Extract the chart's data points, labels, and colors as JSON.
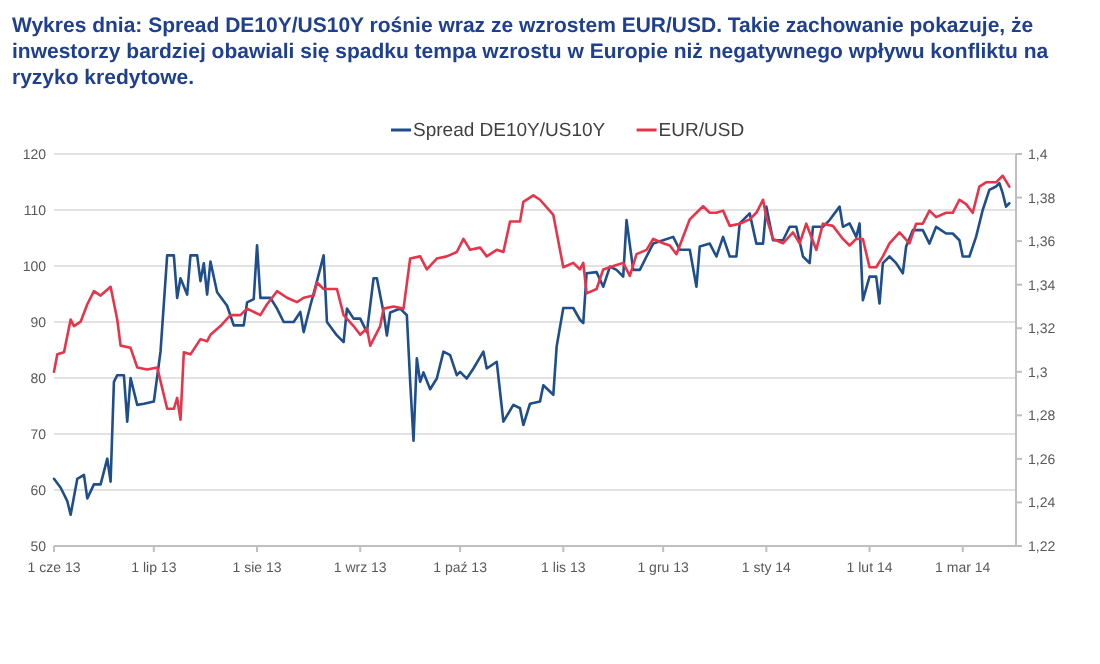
{
  "chart_data": {
    "type": "line",
    "title": "Wykres dnia:  Spread DE10Y/US10Y rośnie wraz ze wzrostem EUR/USD. Takie zachowanie pokazuje, że inwestorzy bardziej obawiali się spadku tempa wzrostu w Europie niż negatywnego wpływu konfliktu na ryzyko kredytowe.",
    "xlim": [
      "2013-06-01",
      "2014-03-17"
    ],
    "xticks": [
      {
        "value": "2013-06-01",
        "label": "1 cze 13"
      },
      {
        "value": "2013-07-01",
        "label": "1 lip 13"
      },
      {
        "value": "2013-08-01",
        "label": "1 sie 13"
      },
      {
        "value": "2013-09-01",
        "label": "1 wrz 13"
      },
      {
        "value": "2013-10-01",
        "label": "1 paź 13"
      },
      {
        "value": "2013-11-01",
        "label": "1 lis 13"
      },
      {
        "value": "2013-12-01",
        "label": "1 gru 13"
      },
      {
        "value": "2014-01-01",
        "label": "1 sty 14"
      },
      {
        "value": "2014-02-01",
        "label": "1 lut 14"
      },
      {
        "value": "2014-03-01",
        "label": "1 mar 14"
      }
    ],
    "ylim": [
      50,
      120
    ],
    "yticks": [
      50,
      60,
      70,
      80,
      90,
      100,
      110,
      120
    ],
    "y2lim": [
      1.22,
      1.4
    ],
    "y2ticks": [
      {
        "value": 1.22,
        "label": "1,22"
      },
      {
        "value": 1.24,
        "label": "1,24"
      },
      {
        "value": 1.26,
        "label": "1,26"
      },
      {
        "value": 1.28,
        "label": "1,28"
      },
      {
        "value": 1.3,
        "label": "1,3"
      },
      {
        "value": 1.32,
        "label": "1,32"
      },
      {
        "value": 1.34,
        "label": "1,34"
      },
      {
        "value": 1.36,
        "label": "1,36"
      },
      {
        "value": 1.38,
        "label": "1,38"
      },
      {
        "value": 1.4,
        "label": "1,4"
      }
    ],
    "grid": "y",
    "legend": "top",
    "series": [
      {
        "name": "Spread DE10Y/US10Y",
        "color": "#1f4e8c",
        "x": [
          "2013-06-01",
          "2013-06-03",
          "2013-06-05",
          "2013-06-06",
          "2013-06-08",
          "2013-06-10",
          "2013-06-11",
          "2013-06-13",
          "2013-06-15",
          "2013-06-17",
          "2013-06-18",
          "2013-06-19",
          "2013-06-20",
          "2013-06-22",
          "2013-06-23",
          "2013-06-24",
          "2013-06-26",
          "2013-06-28",
          "2013-07-01",
          "2013-07-03",
          "2013-07-05",
          "2013-07-07",
          "2013-07-08",
          "2013-07-09",
          "2013-07-11",
          "2013-07-12",
          "2013-07-14",
          "2013-07-15",
          "2013-07-16",
          "2013-07-17",
          "2013-07-18",
          "2013-07-20",
          "2013-07-23",
          "2013-07-25",
          "2013-07-28",
          "2013-07-29",
          "2013-07-31",
          "2013-08-01",
          "2013-08-02",
          "2013-08-05",
          "2013-08-07",
          "2013-08-09",
          "2013-08-12",
          "2013-08-14",
          "2013-08-15",
          "2013-08-17",
          "2013-08-19",
          "2013-08-21",
          "2013-08-22",
          "2013-08-25",
          "2013-08-27",
          "2013-08-28",
          "2013-08-30",
          "2013-09-01",
          "2013-09-03",
          "2013-09-05",
          "2013-09-06",
          "2013-09-08",
          "2013-09-09",
          "2013-09-10",
          "2013-09-13",
          "2013-09-15",
          "2013-09-16",
          "2013-09-17",
          "2013-09-18",
          "2013-09-19",
          "2013-09-20",
          "2013-09-22",
          "2013-09-24",
          "2013-09-26",
          "2013-09-28",
          "2013-09-30",
          "2013-10-01",
          "2013-10-03",
          "2013-10-05",
          "2013-10-08",
          "2013-10-09",
          "2013-10-12",
          "2013-10-14",
          "2013-10-17",
          "2013-10-19",
          "2013-10-20",
          "2013-10-22",
          "2013-10-25",
          "2013-10-26",
          "2013-10-29",
          "2013-10-30",
          "2013-11-01",
          "2013-11-04",
          "2013-11-06",
          "2013-11-07",
          "2013-11-08",
          "2013-11-11",
          "2013-11-13",
          "2013-11-15",
          "2013-11-17",
          "2013-11-19",
          "2013-11-20",
          "2013-11-22",
          "2013-11-24",
          "2013-11-26",
          "2013-11-28",
          "2013-12-01",
          "2013-12-04",
          "2013-12-06",
          "2013-12-09",
          "2013-12-11",
          "2013-12-12",
          "2013-12-15",
          "2013-12-17",
          "2013-12-19",
          "2013-12-21",
          "2013-12-23",
          "2013-12-24",
          "2013-12-27",
          "2013-12-29",
          "2013-12-31",
          "2014-01-01",
          "2014-01-03",
          "2014-01-06",
          "2014-01-08",
          "2014-01-10",
          "2014-01-12",
          "2014-01-14",
          "2014-01-15",
          "2014-01-18",
          "2014-01-20",
          "2014-01-23",
          "2014-01-24",
          "2014-01-26",
          "2014-01-28",
          "2014-01-29",
          "2014-01-30",
          "2014-02-01",
          "2014-02-03",
          "2014-02-04",
          "2014-02-05",
          "2014-02-07",
          "2014-02-09",
          "2014-02-11",
          "2014-02-12",
          "2014-02-14",
          "2014-02-17",
          "2014-02-19",
          "2014-02-21",
          "2014-02-24",
          "2014-02-26",
          "2014-02-28",
          "2014-03-01",
          "2014-03-03",
          "2014-03-05",
          "2014-03-07",
          "2014-03-09",
          "2014-03-11",
          "2014-03-12",
          "2014-03-13",
          "2014-03-14",
          "2014-03-15"
        ],
        "values": [
          62,
          60.4,
          58,
          55.6,
          62,
          62.7,
          58.5,
          61,
          61,
          65.6,
          61.5,
          79.3,
          80.5,
          80.5,
          72.2,
          80,
          75.2,
          75.4,
          75.8,
          84.7,
          101.9,
          101.9,
          94.3,
          97.8,
          94.9,
          101.9,
          101.9,
          97.3,
          100.5,
          94.9,
          100.8,
          95.3,
          92.9,
          89.4,
          89.4,
          93.5,
          94.1,
          103.7,
          94.3,
          94.3,
          92.4,
          90,
          90,
          91.8,
          88.2,
          92.9,
          97.3,
          101.9,
          90,
          87.6,
          86.4,
          92.4,
          90.6,
          90.6,
          88.2,
          97.8,
          97.8,
          91.7,
          87.6,
          91.7,
          92.4,
          91.2,
          79.3,
          68.8,
          83.5,
          79.3,
          81,
          78,
          79.9,
          84.7,
          84.1,
          80.5,
          81.1,
          79.9,
          81.7,
          84.7,
          81.7,
          82.9,
          72.2,
          75.2,
          74.6,
          71.6,
          75.4,
          75.8,
          78.7,
          77,
          85.6,
          92.5,
          92.5,
          90.4,
          89.8,
          98.7,
          98.9,
          96.3,
          99.9,
          99.3,
          98.1,
          108.2,
          99.3,
          99.3,
          101.7,
          104,
          104.6,
          105.2,
          102.9,
          102.9,
          96.3,
          103.5,
          104,
          101.7,
          105.2,
          101.7,
          101.7,
          107.6,
          109.4,
          104,
          104,
          110.6,
          104.6,
          104.6,
          107,
          107,
          101.7,
          100.5,
          107,
          107,
          108.2,
          110.6,
          107,
          107.6,
          105.2,
          107.6,
          93.9,
          98.1,
          98.1,
          93.3,
          100.5,
          101.7,
          100.5,
          98.7,
          103.5,
          106.4,
          106.4,
          104,
          107,
          105.8,
          105.8,
          104.6,
          101.7,
          101.7,
          105.2,
          110,
          113.6,
          114.2,
          114.8,
          113,
          110.6,
          111.2
        ]
      },
      {
        "name": "EUR/USD",
        "color": "#e8344a",
        "axis": "y2",
        "x": [
          "2013-06-01",
          "2013-06-02",
          "2013-06-04",
          "2013-06-06",
          "2013-06-07",
          "2013-06-09",
          "2013-06-11",
          "2013-06-13",
          "2013-06-15",
          "2013-06-18",
          "2013-06-20",
          "2013-06-21",
          "2013-06-24",
          "2013-06-26",
          "2013-06-29",
          "2013-07-02",
          "2013-07-05",
          "2013-07-07",
          "2013-07-08",
          "2013-07-09",
          "2013-07-10",
          "2013-07-12",
          "2013-07-15",
          "2013-07-17",
          "2013-07-18",
          "2013-07-21",
          "2013-07-24",
          "2013-07-27",
          "2013-07-29",
          "2013-08-02",
          "2013-08-04",
          "2013-08-07",
          "2013-08-10",
          "2013-08-13",
          "2013-08-15",
          "2013-08-18",
          "2013-08-19",
          "2013-08-21",
          "2013-08-25",
          "2013-08-27",
          "2013-08-30",
          "2013-09-01",
          "2013-09-03",
          "2013-09-04",
          "2013-09-06",
          "2013-09-07",
          "2013-09-08",
          "2013-09-11",
          "2013-09-14",
          "2013-09-16",
          "2013-09-19",
          "2013-09-21",
          "2013-09-24",
          "2013-09-27",
          "2013-09-30",
          "2013-10-02",
          "2013-10-04",
          "2013-10-07",
          "2013-10-09",
          "2013-10-12",
          "2013-10-14",
          "2013-10-16",
          "2013-10-19",
          "2013-10-20",
          "2013-10-23",
          "2013-10-25",
          "2013-10-29",
          "2013-11-01",
          "2013-11-04",
          "2013-11-06",
          "2013-11-07",
          "2013-11-08",
          "2013-11-11",
          "2013-11-13",
          "2013-11-15",
          "2013-11-17",
          "2013-11-19",
          "2013-11-21",
          "2013-11-23",
          "2013-11-26",
          "2013-11-28",
          "2013-12-01",
          "2013-12-03",
          "2013-12-05",
          "2013-12-07",
          "2013-12-09",
          "2013-12-11",
          "2013-12-13",
          "2013-12-15",
          "2013-12-17",
          "2013-12-19",
          "2013-12-21",
          "2013-12-24",
          "2013-12-27",
          "2013-12-29",
          "2013-12-31",
          "2014-01-01",
          "2014-01-03",
          "2014-01-06",
          "2014-01-09",
          "2014-01-11",
          "2014-01-13",
          "2014-01-16",
          "2014-01-18",
          "2014-01-21",
          "2014-01-24",
          "2014-01-26",
          "2014-01-28",
          "2014-01-30",
          "2014-02-01",
          "2014-02-03",
          "2014-02-05",
          "2014-02-07",
          "2014-02-10",
          "2014-02-13",
          "2014-02-15",
          "2014-02-17",
          "2014-02-19",
          "2014-02-21",
          "2014-02-24",
          "2014-02-26",
          "2014-02-28",
          "2014-03-02",
          "2014-03-04",
          "2014-03-06",
          "2014-03-08",
          "2014-03-11",
          "2014-03-13",
          "2014-03-15"
        ],
        "values": [
          1.3,
          1.308,
          1.309,
          1.324,
          1.321,
          1.323,
          1.331,
          1.337,
          1.335,
          1.339,
          1.324,
          1.312,
          1.311,
          1.302,
          1.301,
          1.302,
          1.283,
          1.283,
          1.288,
          1.278,
          1.309,
          1.308,
          1.315,
          1.314,
          1.317,
          1.321,
          1.326,
          1.326,
          1.329,
          1.326,
          1.331,
          1.337,
          1.334,
          1.332,
          1.334,
          1.335,
          1.341,
          1.338,
          1.338,
          1.326,
          1.321,
          1.317,
          1.32,
          1.312,
          1.318,
          1.321,
          1.329,
          1.33,
          1.329,
          1.352,
          1.353,
          1.347,
          1.352,
          1.353,
          1.355,
          1.361,
          1.356,
          1.357,
          1.353,
          1.356,
          1.355,
          1.369,
          1.369,
          1.378,
          1.381,
          1.379,
          1.372,
          1.348,
          1.35,
          1.347,
          1.35,
          1.336,
          1.338,
          1.347,
          1.348,
          1.349,
          1.35,
          1.344,
          1.354,
          1.356,
          1.361,
          1.359,
          1.358,
          1.354,
          1.362,
          1.37,
          1.373,
          1.376,
          1.373,
          1.373,
          1.374,
          1.367,
          1.368,
          1.37,
          1.373,
          1.379,
          1.371,
          1.361,
          1.359,
          1.364,
          1.359,
          1.368,
          1.356,
          1.368,
          1.367,
          1.361,
          1.358,
          1.361,
          1.361,
          1.348,
          1.348,
          1.353,
          1.359,
          1.364,
          1.359,
          1.368,
          1.368,
          1.374,
          1.371,
          1.373,
          1.373,
          1.379,
          1.377,
          1.373,
          1.385,
          1.387,
          1.387,
          1.39,
          1.385
        ]
      }
    ]
  }
}
